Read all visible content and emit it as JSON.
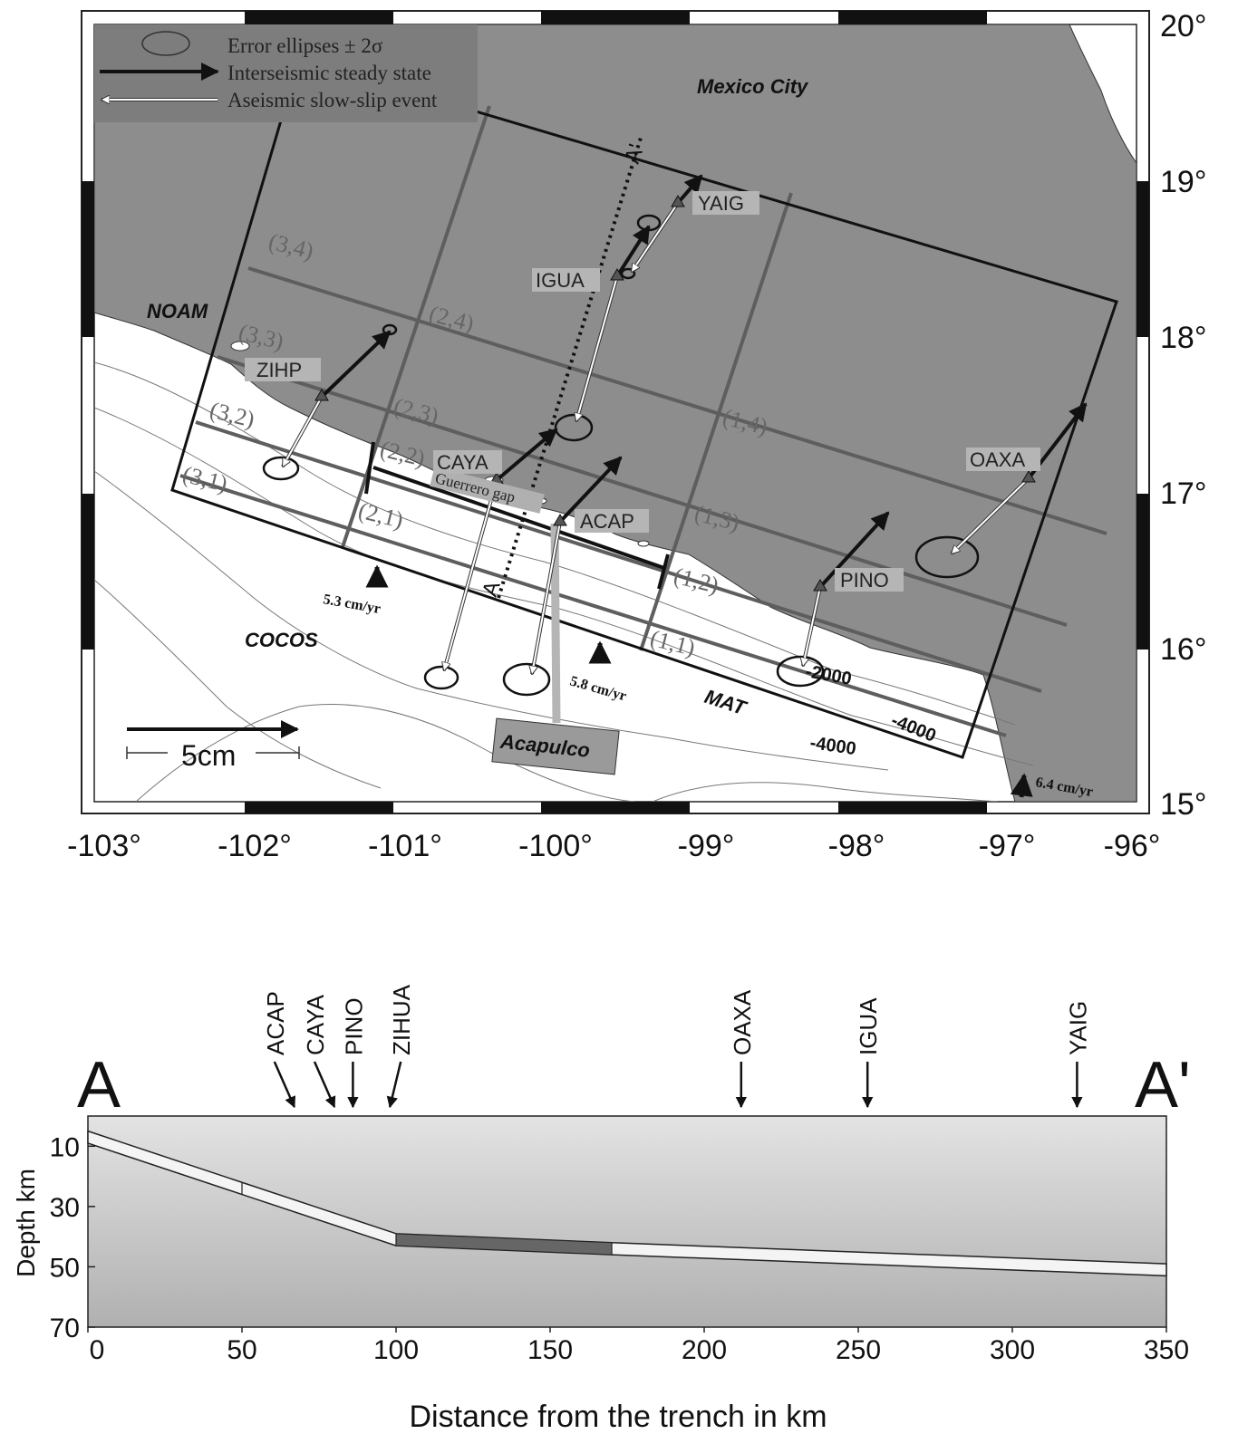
{
  "map": {
    "lon_ticks": [
      "-103°",
      "-102°",
      "-101°",
      "-100°",
      "-99°",
      "-98°",
      "-97°",
      "-96°"
    ],
    "lat_ticks": [
      "20°",
      "19°",
      "18°",
      "17°",
      "16°",
      "15°"
    ],
    "legend": {
      "error_ellipses": "Error ellipses ± 2σ",
      "steady_state": "Interseismic steady state",
      "slow_slip": "Aseismic slow-slip event"
    },
    "places": {
      "mexico_city": "Mexico City",
      "noam": "NOAM",
      "cocos": "COCOS",
      "mat": "MAT",
      "acapulco": "Acapulco",
      "guerrero_gap": "Guerrero gap"
    },
    "profile_ends": {
      "a": "A",
      "a_prime": "A'"
    },
    "stations": [
      "YAIG",
      "IGUA",
      "ZIHP",
      "CAYA",
      "ACAP",
      "OAXA",
      "PINO"
    ],
    "grid_cells": [
      "(3,4)",
      "(3,3)",
      "(3,2)",
      "(3,1)",
      "(2,4)",
      "(2,3)",
      "(2,2)",
      "(2,1)",
      "(1,4)",
      "(1,3)",
      "(1,2)",
      "(1,1)"
    ],
    "rates": {
      "west": "5.3 cm/yr",
      "center": "5.8 cm/yr",
      "east": "6.4 cm/yr"
    },
    "scale_label": "5cm",
    "contours": {
      "c1": "-2000",
      "c2": "-4000",
      "c3": "-4000"
    },
    "colors": {
      "land": "#8d8d8d",
      "sea": "#ffffff",
      "legend_bg": "#7d7d7d"
    }
  },
  "profile": {
    "end_a": "A",
    "end_a_prime": "A'",
    "stations": [
      {
        "name": "ACAP",
        "distance_km": 67
      },
      {
        "name": "CAYA",
        "distance_km": 80
      },
      {
        "name": "PINO",
        "distance_km": 86
      },
      {
        "name": "ZIHUA",
        "distance_km": 98
      },
      {
        "name": "OAXA",
        "distance_km": 212
      },
      {
        "name": "IGUA",
        "distance_km": 253
      },
      {
        "name": "YAIG",
        "distance_km": 321
      }
    ],
    "ylabel": "Depth km",
    "xlabel": "Distance from the trench in km",
    "x_ticks": [
      0,
      50,
      100,
      150,
      200,
      250,
      300,
      350
    ],
    "y_ticks": [
      10,
      30,
      50,
      70
    ],
    "xlim": [
      0,
      350
    ],
    "ylim": [
      0,
      70
    ],
    "interface_top": [
      [
        0,
        5
      ],
      [
        50,
        22
      ],
      [
        100,
        39
      ],
      [
        170,
        42
      ],
      [
        350,
        49
      ]
    ],
    "interface_bottom": [
      [
        0,
        9
      ],
      [
        50,
        26
      ],
      [
        100,
        43
      ],
      [
        170,
        46
      ],
      [
        350,
        53
      ]
    ],
    "dark_segment_km": [
      100,
      170
    ]
  }
}
